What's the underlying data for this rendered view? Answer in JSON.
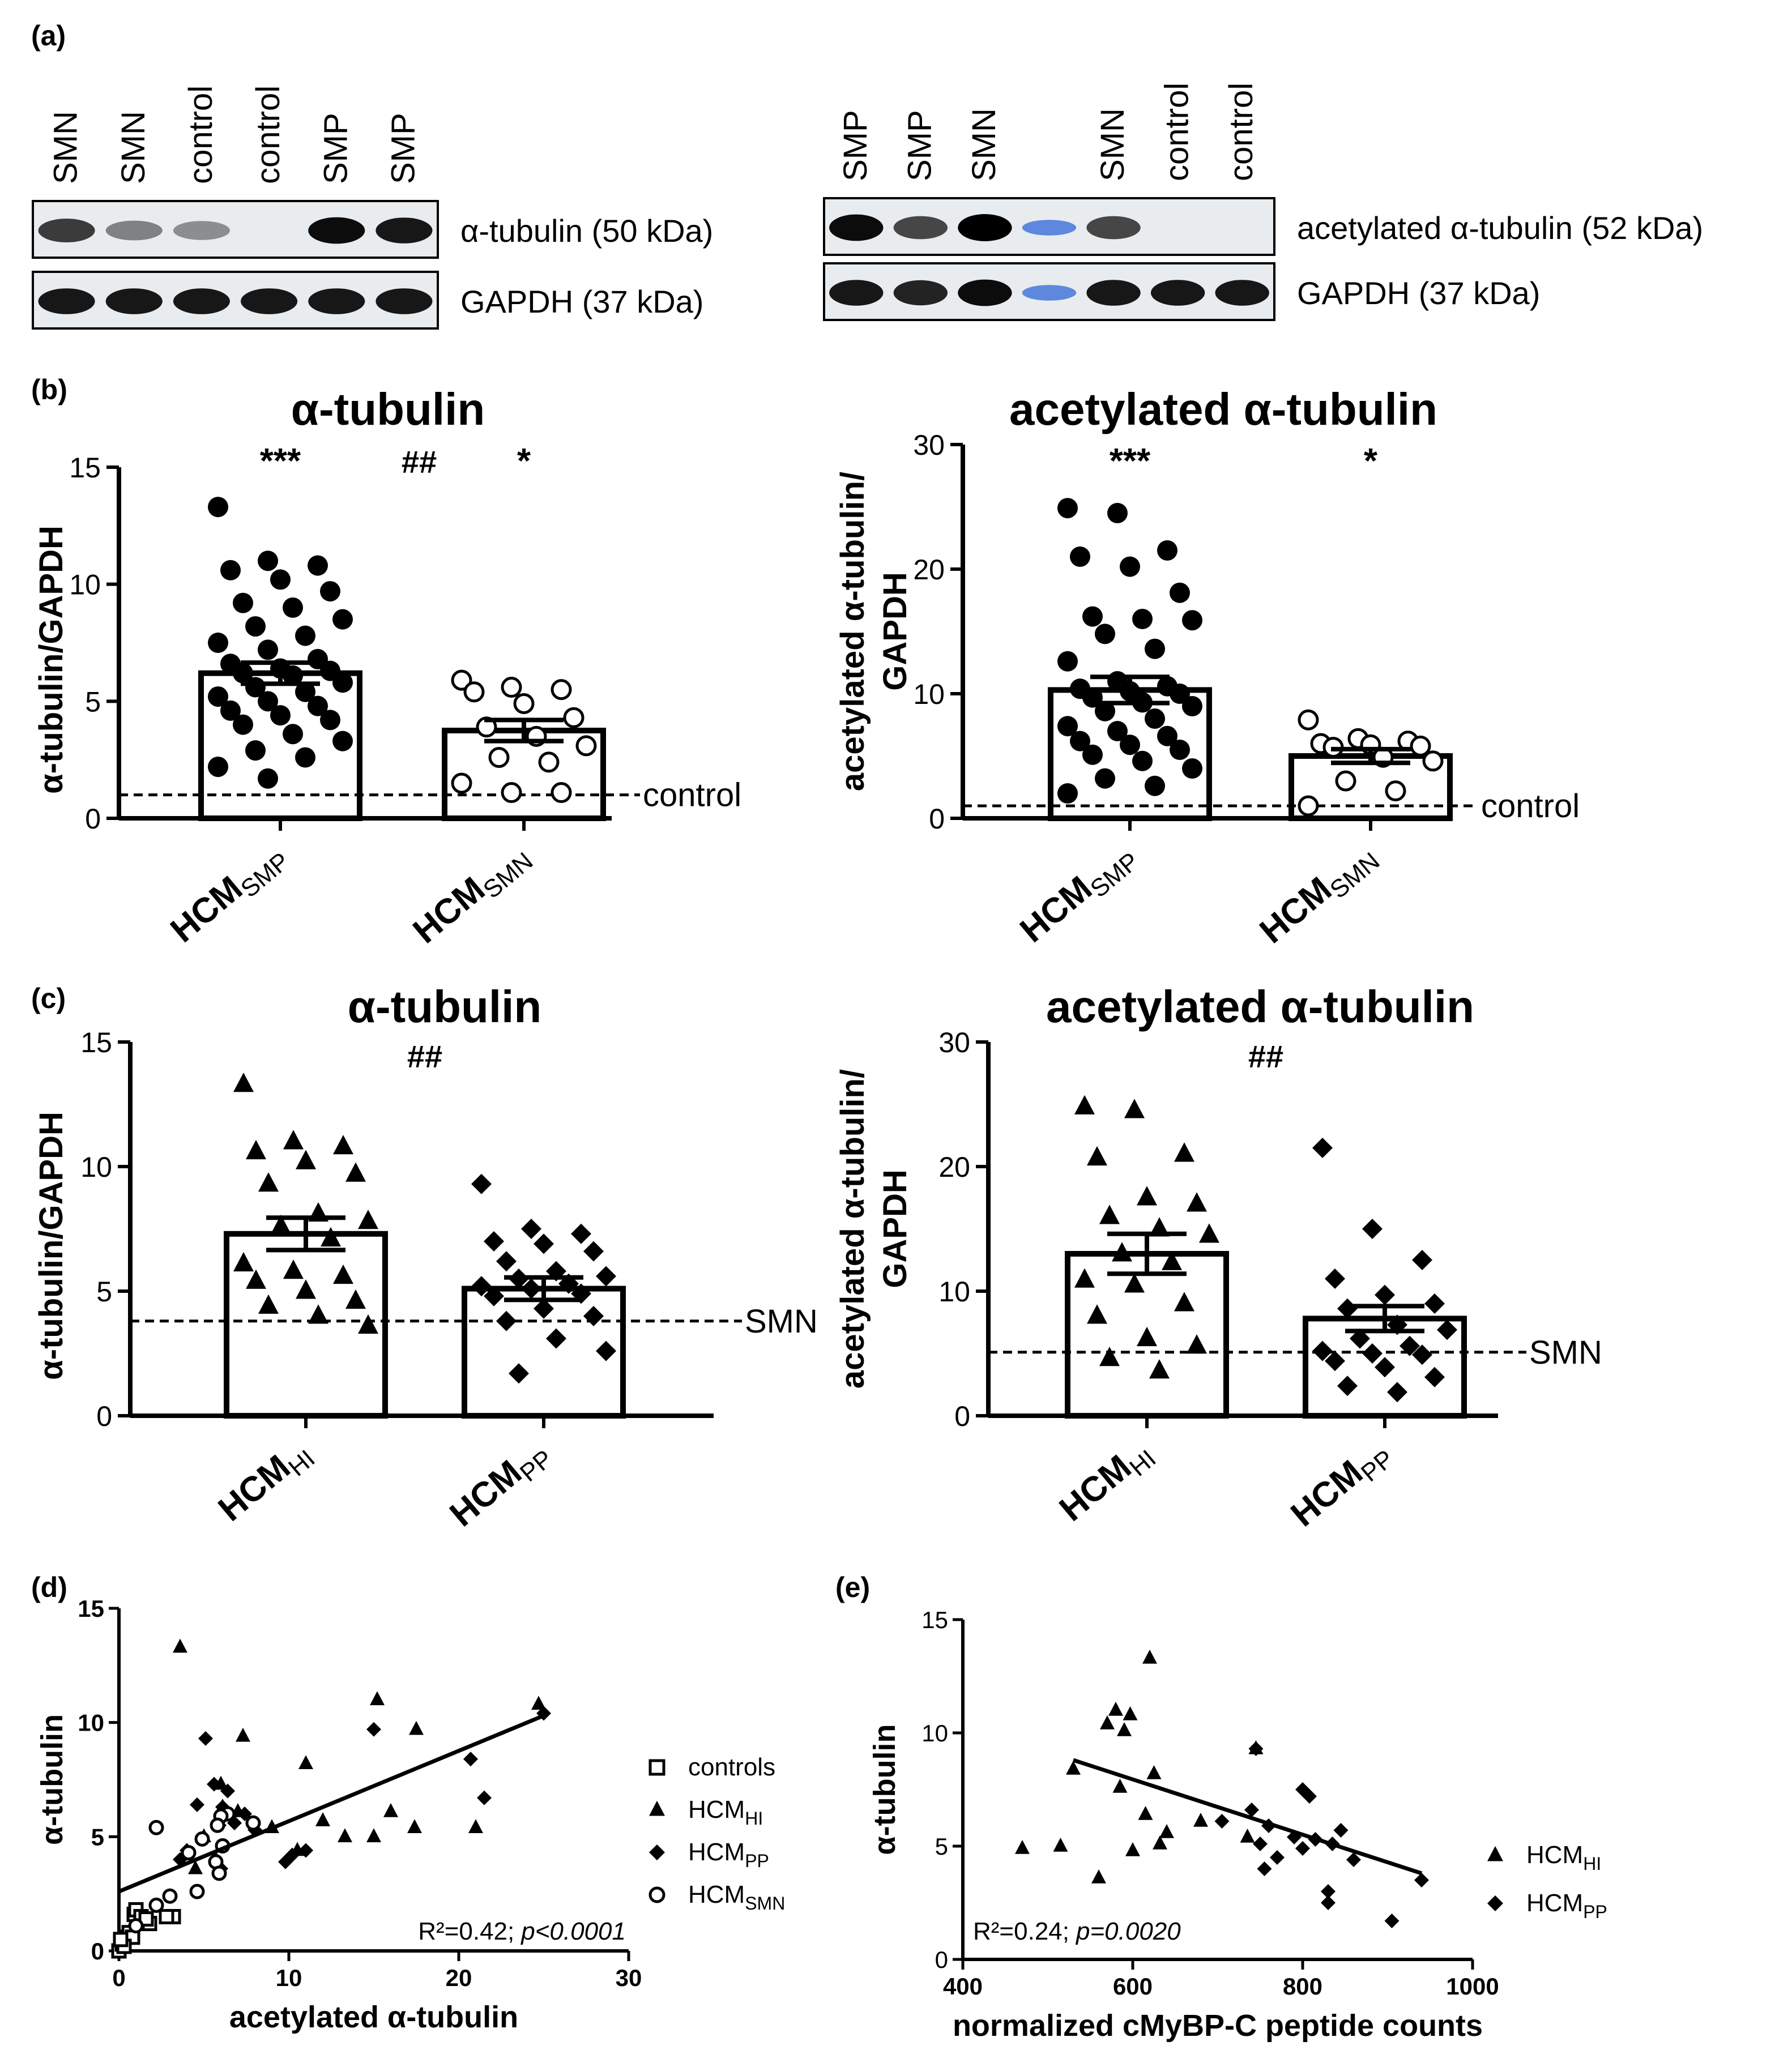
{
  "panel_labels": {
    "a": "(a)",
    "b": "(b)",
    "c": "(c)",
    "d": "(d)",
    "e": "(e)"
  },
  "blot_left": {
    "lanes": [
      "SMN",
      "SMN",
      "control",
      "control",
      "SMP",
      "SMP"
    ],
    "rows": [
      {
        "label": "α-tubulin (50 kDa)",
        "band_intensity": [
          0.75,
          0.45,
          0.4,
          0.0,
          0.95,
          0.9
        ]
      },
      {
        "label": "GAPDH (37 kDa)",
        "band_intensity": [
          0.9,
          0.9,
          0.9,
          0.9,
          0.9,
          0.9
        ]
      }
    ]
  },
  "blot_right": {
    "lanes": [
      "SMP",
      "SMP",
      "SMN",
      "",
      "SMN",
      "control",
      "control"
    ],
    "rows": [
      {
        "label": "acetylated α-tubulin (52 kDa)",
        "band_intensity": [
          0.95,
          0.7,
          1.0,
          0.15,
          0.7,
          0.0,
          0.0
        ]
      },
      {
        "label": "GAPDH (37 kDa)",
        "band_intensity": [
          0.9,
          0.85,
          0.95,
          0.15,
          0.9,
          0.9,
          0.9
        ]
      }
    ]
  },
  "chart_data": [
    {
      "id": "b-left",
      "type": "bar",
      "title": "α-tubulin",
      "ylabel": "α-tubulin/GAPDH",
      "ylim": [
        0,
        15
      ],
      "yticks": [
        0,
        5,
        10,
        15
      ],
      "categories": [
        {
          "main": "HCM",
          "sub": "SMP"
        },
        {
          "main": "HCM",
          "sub": "SMN"
        }
      ],
      "means": [
        6.2,
        3.75
      ],
      "sem": [
        0.45,
        0.45
      ],
      "markers": [
        "filled-circle",
        "open-circle"
      ],
      "significance": [
        "***",
        "*"
      ],
      "between_significance": "##",
      "reference": {
        "value": 1.0,
        "label": "control"
      },
      "points": [
        [
          13.3,
          11.0,
          10.8,
          10.6,
          10.2,
          9.7,
          9.2,
          9.0,
          8.5,
          8.2,
          7.8,
          7.5,
          7.2,
          6.8,
          6.6,
          6.4,
          6.3,
          6.2,
          6.1,
          5.8,
          5.6,
          5.4,
          5.2,
          5.0,
          4.8,
          4.6,
          4.4,
          4.2,
          4.0,
          3.6,
          3.3,
          2.9,
          2.6,
          2.2,
          1.7
        ],
        [
          5.9,
          5.6,
          5.5,
          5.4,
          4.9,
          4.3,
          3.9,
          3.5,
          3.1,
          2.6,
          2.4,
          1.5,
          1.1,
          1.1
        ]
      ]
    },
    {
      "id": "b-right",
      "type": "bar",
      "title": "acetylated α-tubulin",
      "ylabel": [
        "acetylated α-tubulin/",
        "GAPDH"
      ],
      "ylim": [
        0,
        30
      ],
      "yticks": [
        0,
        10,
        20,
        30
      ],
      "categories": [
        {
          "main": "HCM",
          "sub": "SMP"
        },
        {
          "main": "HCM",
          "sub": "SMN"
        }
      ],
      "means": [
        10.3,
        5.0
      ],
      "sem": [
        1.05,
        0.55
      ],
      "markers": [
        "filled-circle",
        "open-circle"
      ],
      "significance": [
        "***",
        "*"
      ],
      "between_significance": "",
      "reference": {
        "value": 1.0,
        "label": "control"
      },
      "points": [
        [
          24.9,
          24.5,
          21.5,
          21.0,
          20.2,
          18.1,
          16.2,
          16.0,
          15.9,
          14.8,
          13.6,
          12.6,
          11.0,
          10.6,
          10.4,
          10.2,
          10.0,
          9.7,
          9.3,
          9.0,
          8.6,
          8.0,
          7.4,
          7.0,
          6.6,
          6.2,
          5.9,
          5.5,
          5.1,
          4.6,
          4.0,
          3.2,
          2.6,
          2.0
        ],
        [
          7.9,
          6.4,
          6.2,
          6.0,
          5.9,
          5.8,
          5.7,
          4.9,
          4.6,
          3.0,
          2.2,
          1.0
        ]
      ]
    },
    {
      "id": "c-left",
      "type": "bar",
      "title": "α-tubulin",
      "ylabel": "α-tubulin/GAPDH",
      "ylim": [
        0,
        15
      ],
      "yticks": [
        0,
        5,
        10,
        15
      ],
      "categories": [
        {
          "main": "HCM",
          "sub": "HI"
        },
        {
          "main": "HCM",
          "sub": "PP"
        }
      ],
      "means": [
        7.3,
        5.1
      ],
      "sem": [
        0.65,
        0.45
      ],
      "markers": [
        "triangle",
        "diamond"
      ],
      "significance": [
        "",
        ""
      ],
      "between_significance": "##",
      "reference": {
        "value": 3.8,
        "label": "SMN"
      },
      "points": [
        [
          13.3,
          11.0,
          10.8,
          10.6,
          10.2,
          9.7,
          9.3,
          8.1,
          7.8,
          7.6,
          7.1,
          6.1,
          5.8,
          5.6,
          5.4,
          5.0,
          4.6,
          4.4,
          4.0,
          3.6
        ],
        [
          9.3,
          7.5,
          7.3,
          7.0,
          6.9,
          6.6,
          6.2,
          5.8,
          5.6,
          5.5,
          5.3,
          5.2,
          5.1,
          4.9,
          4.8,
          4.3,
          4.0,
          3.8,
          3.1,
          2.6,
          1.7
        ]
      ]
    },
    {
      "id": "c-right",
      "type": "bar",
      "title": "acetylated α-tubulin",
      "ylabel": [
        "acetylated α-tubulin/",
        "GAPDH"
      ],
      "ylim": [
        0,
        30
      ],
      "yticks": [
        0,
        10,
        20,
        30
      ],
      "categories": [
        {
          "main": "HCM",
          "sub": "HI"
        },
        {
          "main": "HCM",
          "sub": "PP"
        }
      ],
      "means": [
        13.0,
        7.8
      ],
      "sem": [
        1.6,
        1.0
      ],
      "markers": [
        "triangle",
        "diamond"
      ],
      "significance": [
        "",
        ""
      ],
      "between_significance": "##",
      "reference": {
        "value": 5.1,
        "label": "SMN"
      },
      "points": [
        [
          24.8,
          24.5,
          21.0,
          20.7,
          17.5,
          17.0,
          16.0,
          15.0,
          14.5,
          13.0,
          12.3,
          10.9,
          10.5,
          9.0,
          8.0,
          6.2,
          5.6,
          4.6,
          3.6
        ],
        [
          21.5,
          15.0,
          12.5,
          11.0,
          9.7,
          9.0,
          8.6,
          7.3,
          6.9,
          6.2,
          5.6,
          5.2,
          5.0,
          4.9,
          4.4,
          3.9,
          3.1,
          2.4,
          1.9
        ]
      ]
    },
    {
      "id": "d",
      "type": "scatter",
      "xlabel": "acetylated α-tubulin",
      "ylabel": "α-tubulin",
      "xlim": [
        0,
        30
      ],
      "ylim": [
        0,
        15
      ],
      "xticks": [
        0,
        10,
        20,
        30
      ],
      "yticks": [
        0,
        5,
        10,
        15
      ],
      "series": [
        {
          "name": "controls",
          "marker": "open-square",
          "points": [
            [
              0,
              0
            ],
            [
              0.2,
              0.3
            ],
            [
              0.4,
              0.6
            ],
            [
              0.6,
              0.8
            ],
            [
              0.8,
              0.6
            ],
            [
              0.9,
              1.6
            ],
            [
              1.0,
              1.8
            ],
            [
              1.3,
              1.5
            ],
            [
              1.8,
              1.2
            ],
            [
              1.6,
              1.4
            ],
            [
              0.3,
              0.2
            ],
            [
              0.1,
              0.5
            ],
            [
              3.2,
              1.5
            ],
            [
              2.8,
              1.5
            ]
          ]
        },
        {
          "name": "HCM",
          "sub": "HI",
          "marker": "triangle",
          "points": [
            [
              3.6,
              13.3
            ],
            [
              24.7,
              10.8
            ],
            [
              15.2,
              11.0
            ],
            [
              17.5,
              9.7
            ],
            [
              7.3,
              9.4
            ],
            [
              11.0,
              8.2
            ],
            [
              6.0,
              7.3
            ],
            [
              7.0,
              6.1
            ],
            [
              12.0,
              5.7
            ],
            [
              15.0,
              5.0
            ],
            [
              17.4,
              5.4
            ],
            [
              16.0,
              6.1
            ],
            [
              21.0,
              5.4
            ],
            [
              10.5,
              4.4
            ],
            [
              9.0,
              5.4
            ],
            [
              6.1,
              6.3
            ],
            [
              5.0,
              5.0
            ],
            [
              4.5,
              3.6
            ],
            [
              13.3,
              5.0
            ]
          ]
        },
        {
          "name": "HCM",
          "sub": "PP",
          "marker": "diamond",
          "points": [
            [
              5.1,
              9.3
            ],
            [
              21.5,
              6.7
            ],
            [
              4.0,
              4.4
            ],
            [
              5.6,
              7.3
            ],
            [
              6.4,
              7.0
            ],
            [
              11.0,
              4.4
            ],
            [
              8.0,
              5.3
            ],
            [
              10.2,
              4.2
            ],
            [
              6.8,
              5.6
            ],
            [
              9.8,
              3.9
            ],
            [
              5.9,
              5.5
            ],
            [
              7.4,
              6.0
            ],
            [
              15.0,
              9.7
            ],
            [
              4.6,
              6.4
            ],
            [
              3.6,
              4.0
            ],
            [
              6.0,
              3.6
            ],
            [
              5.7,
              4.0
            ],
            [
              25.0,
              10.4
            ],
            [
              20.7,
              8.4
            ],
            [
              6.1,
              6.3
            ]
          ]
        },
        {
          "name": "HCM",
          "sub": "SMN",
          "marker": "open-circle",
          "points": [
            [
              2.2,
              5.4
            ],
            [
              7.9,
              5.6
            ],
            [
              6.4,
              6.0
            ],
            [
              6.0,
              5.9
            ],
            [
              5.8,
              5.5
            ],
            [
              4.9,
              4.9
            ],
            [
              4.1,
              4.3
            ],
            [
              5.7,
              3.9
            ],
            [
              5.9,
              3.4
            ],
            [
              3.0,
              2.4
            ],
            [
              2.2,
              2.0
            ],
            [
              1.0,
              1.1
            ],
            [
              4.6,
              2.6
            ],
            [
              6.1,
              4.6
            ]
          ]
        }
      ],
      "fit": {
        "x": [
          0,
          25
        ],
        "y": [
          2.6,
          10.3
        ]
      },
      "annotation": {
        "r2": "R²=0.42;",
        "p": "p<0.0001"
      }
    },
    {
      "id": "e",
      "type": "scatter",
      "xlabel": "normalized cMyBP-C peptide counts",
      "ylabel": "α-tubulin",
      "xlim": [
        400,
        1000
      ],
      "ylim": [
        0,
        15
      ],
      "xticks": [
        400,
        600,
        800,
        1000
      ],
      "yticks": [
        0,
        5,
        10,
        15
      ],
      "series": [
        {
          "name": "HCM",
          "sub": "HI",
          "marker": "triangle",
          "points": [
            [
              620,
              13.3
            ],
            [
              580,
              11.0
            ],
            [
              597,
              10.8
            ],
            [
              570,
              10.4
            ],
            [
              590,
              10.1
            ],
            [
              530,
              8.4
            ],
            [
              625,
              8.2
            ],
            [
              585,
              7.6
            ],
            [
              615,
              6.4
            ],
            [
              640,
              5.6
            ],
            [
              680,
              6.1
            ],
            [
              560,
              3.6
            ],
            [
              470,
              4.9
            ],
            [
              515,
              5.0
            ],
            [
              600,
              4.8
            ],
            [
              632,
              5.1
            ],
            [
              735,
              5.4
            ],
            [
              745,
              9.3
            ]
          ]
        },
        {
          "name": "HCM",
          "sub": "PP",
          "marker": "diamond",
          "points": [
            [
              745,
              9.3
            ],
            [
              800,
              7.5
            ],
            [
              808,
              7.2
            ],
            [
              740,
              6.6
            ],
            [
              705,
              6.1
            ],
            [
              760,
              5.9
            ],
            [
              790,
              5.4
            ],
            [
              815,
              5.3
            ],
            [
              835,
              5.1
            ],
            [
              845,
              5.7
            ],
            [
              750,
              5.1
            ],
            [
              800,
              4.9
            ],
            [
              860,
              4.4
            ],
            [
              770,
              4.5
            ],
            [
              755,
              4.0
            ],
            [
              830,
              3.0
            ],
            [
              830,
              2.5
            ],
            [
              905,
              1.7
            ],
            [
              940,
              3.5
            ]
          ]
        }
      ],
      "fit": {
        "x": [
          530,
          940
        ],
        "y": [
          8.8,
          3.8
        ]
      },
      "annotation": {
        "r2": "R²=0.24;",
        "p": "p=0.0020"
      }
    }
  ]
}
